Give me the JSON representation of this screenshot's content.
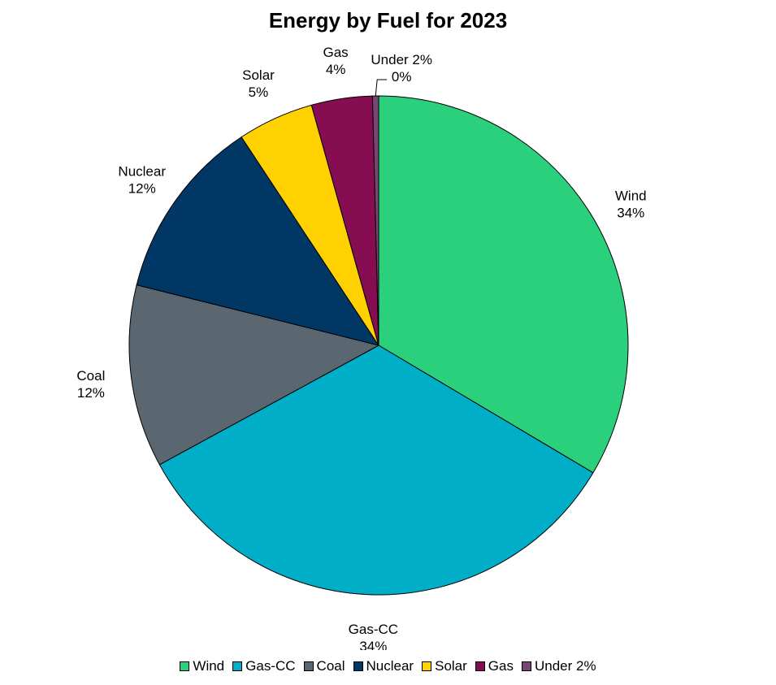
{
  "chart_data": {
    "type": "pie",
    "title": "Energy by Fuel for 2023",
    "slices": [
      {
        "name": "Wind",
        "value": 34,
        "label": "34%",
        "color": "#2ad07c"
      },
      {
        "name": "Gas-CC",
        "value": 34,
        "label": "34%",
        "color": "#00aec7"
      },
      {
        "name": "Coal",
        "value": 12,
        "label": "12%",
        "color": "#5b6770"
      },
      {
        "name": "Nuclear",
        "value": 12,
        "label": "12%",
        "color": "#003764"
      },
      {
        "name": "Solar",
        "value": 5,
        "label": "5%",
        "color": "#ffd100"
      },
      {
        "name": "Gas",
        "value": 4,
        "label": "4%",
        "color": "#870d53"
      },
      {
        "name": "Under 2%",
        "value": 0.4,
        "label": "0%",
        "color": "#7a4573"
      }
    ],
    "legend_position": "bottom"
  }
}
